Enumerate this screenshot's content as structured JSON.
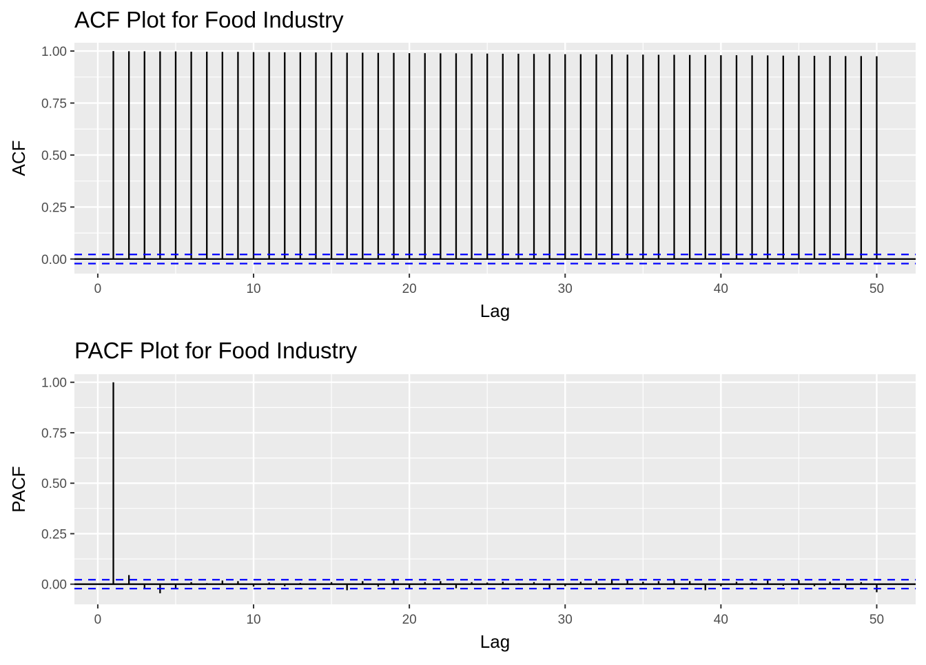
{
  "chart_data": [
    {
      "type": "bar",
      "title": "ACF Plot for Food Industry",
      "xlabel": "Lag",
      "ylabel": "ACF",
      "xlim": [
        -1.5,
        52.5
      ],
      "ylim": [
        -0.07,
        1.04
      ],
      "x_ticks": [
        0,
        10,
        20,
        30,
        40,
        50
      ],
      "x_tick_labels": [
        "0",
        "10",
        "20",
        "30",
        "40",
        "50"
      ],
      "y_ticks": [
        0,
        0.25,
        0.5,
        0.75,
        1.0
      ],
      "y_tick_labels": [
        "0.00",
        "0.25",
        "0.50",
        "0.75",
        "1.00"
      ],
      "confidence_bound": 0.022,
      "grid": true,
      "x": [
        1,
        2,
        3,
        4,
        5,
        6,
        7,
        8,
        9,
        10,
        11,
        12,
        13,
        14,
        15,
        16,
        17,
        18,
        19,
        20,
        21,
        22,
        23,
        24,
        25,
        26,
        27,
        28,
        29,
        30,
        31,
        32,
        33,
        34,
        35,
        36,
        37,
        38,
        39,
        40,
        41,
        42,
        43,
        44,
        45,
        46,
        47,
        48,
        49,
        50
      ],
      "values": [
        1.0,
        0.999,
        0.999,
        0.998,
        0.998,
        0.997,
        0.997,
        0.996,
        0.996,
        0.995,
        0.995,
        0.994,
        0.994,
        0.993,
        0.993,
        0.992,
        0.992,
        0.991,
        0.991,
        0.99,
        0.99,
        0.989,
        0.989,
        0.988,
        0.988,
        0.987,
        0.987,
        0.986,
        0.986,
        0.985,
        0.985,
        0.984,
        0.984,
        0.983,
        0.983,
        0.982,
        0.982,
        0.981,
        0.981,
        0.98,
        0.98,
        0.979,
        0.979,
        0.978,
        0.978,
        0.977,
        0.977,
        0.976,
        0.976,
        0.975
      ]
    },
    {
      "type": "bar",
      "title": "PACF Plot for Food Industry",
      "xlabel": "Lag",
      "ylabel": "PACF",
      "xlim": [
        -1.5,
        52.5
      ],
      "ylim": [
        -0.1,
        1.04
      ],
      "x_ticks": [
        0,
        10,
        20,
        30,
        40,
        50
      ],
      "x_tick_labels": [
        "0",
        "10",
        "20",
        "30",
        "40",
        "50"
      ],
      "y_ticks": [
        0,
        0.25,
        0.5,
        0.75,
        1.0
      ],
      "y_tick_labels": [
        "0.00",
        "0.25",
        "0.50",
        "0.75",
        "1.00"
      ],
      "confidence_bound": 0.022,
      "grid": true,
      "x": [
        1,
        2,
        3,
        4,
        5,
        6,
        7,
        8,
        9,
        10,
        11,
        12,
        13,
        14,
        15,
        16,
        17,
        18,
        19,
        20,
        21,
        22,
        23,
        24,
        25,
        26,
        27,
        28,
        29,
        30,
        31,
        32,
        33,
        34,
        35,
        36,
        37,
        38,
        39,
        40,
        41,
        42,
        43,
        44,
        45,
        46,
        47,
        48,
        49,
        50
      ],
      "values": [
        1.0,
        0.045,
        -0.02,
        -0.045,
        -0.02,
        0.01,
        0.005,
        0.018,
        0.015,
        -0.012,
        0.008,
        -0.01,
        0.006,
        0.004,
        0.01,
        -0.03,
        0.015,
        -0.012,
        0.018,
        -0.018,
        0.01,
        0.015,
        -0.02,
        0.01,
        0.008,
        0.012,
        0.005,
        0.01,
        -0.02,
        -0.01,
        0.012,
        0.015,
        0.025,
        0.02,
        0.012,
        0.015,
        0.02,
        0.015,
        -0.03,
        -0.01,
        0.012,
        0.008,
        0.018,
        -0.008,
        0.02,
        -0.01,
        0.012,
        -0.02,
        0.01,
        -0.04
      ]
    }
  ]
}
